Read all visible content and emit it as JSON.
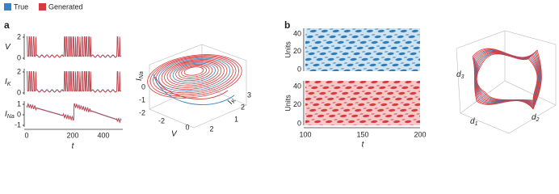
{
  "legend": [
    "True",
    "Generated"
  ],
  "panel_a": {
    "label": "a",
    "timeseries": [
      {
        "ylabel": {
          "main": "V",
          "sub": ""
        },
        "yticks": [
          2,
          0
        ]
      },
      {
        "ylabel": {
          "main": "I",
          "sub": "K"
        },
        "yticks": [
          2,
          0
        ]
      },
      {
        "ylabel": {
          "main": "I",
          "sub": "Na"
        },
        "yticks": [
          1,
          0,
          -1
        ]
      }
    ],
    "xticks": [
      0,
      200,
      400
    ],
    "xlabel": "t",
    "phase": {
      "zlabel": {
        "main": "I",
        "sub": "Na"
      },
      "zticks": [
        0,
        -1,
        -2
      ],
      "xlabel": "V",
      "xticks": [
        -2,
        0,
        2
      ],
      "ylabel": {
        "main": "I",
        "sub": "K"
      },
      "yticks": [
        1,
        2,
        3
      ]
    }
  },
  "panel_b": {
    "label": "b",
    "heatmaps": [
      {
        "ylabel": "Units",
        "yticks": [
          40,
          20,
          0
        ]
      },
      {
        "ylabel": "Units",
        "yticks": [
          40,
          20,
          0
        ]
      }
    ],
    "xticks": [
      100,
      150,
      200
    ],
    "xlabel": "t",
    "latent": {
      "zlabel": {
        "main": "d",
        "sub": "3"
      },
      "xlabel": {
        "main": "d",
        "sub": "1"
      },
      "ylabel": {
        "main": "d",
        "sub": "2"
      }
    }
  }
}
